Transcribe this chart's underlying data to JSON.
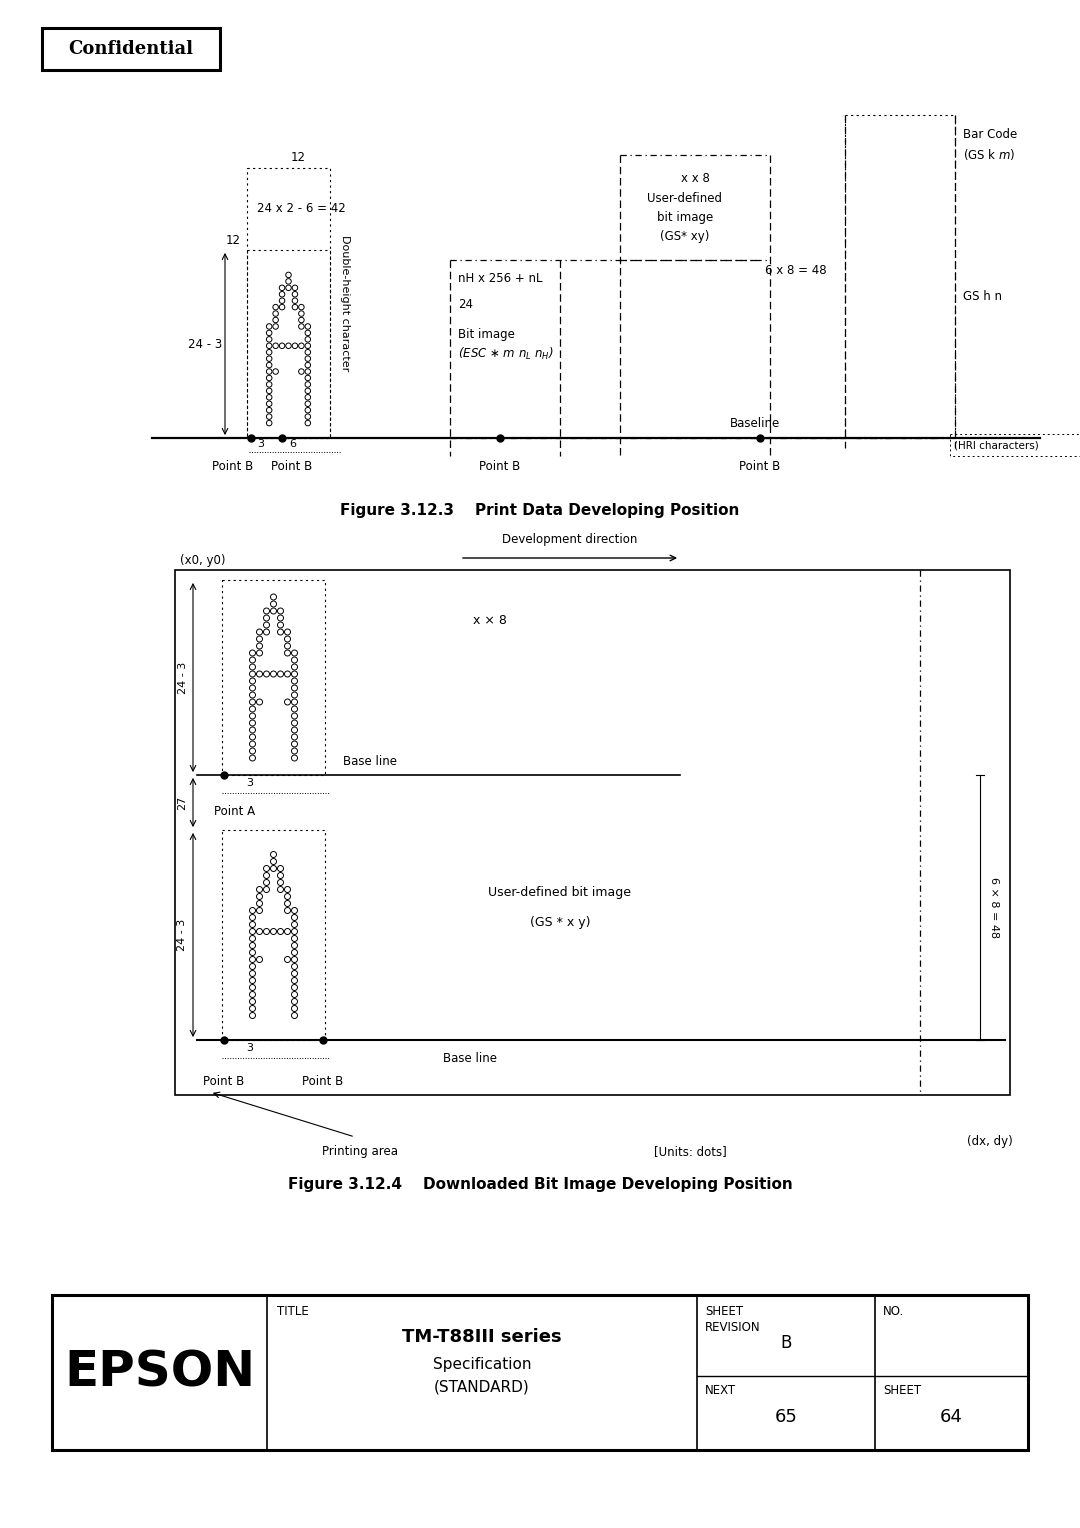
{
  "page_bg": "#ffffff",
  "confidential_text": "Confidential",
  "fig312_caption": "Figure 3.12.3    Print Data Developing Position",
  "fig314_caption": "Figure 3.12.4    Downloaded Bit Image Developing Position",
  "epson_text": "EPSON",
  "title_label": "TITLE",
  "title_main": "TM-T88III series",
  "title_sub1": "Specification",
  "title_sub2": "(STANDARD)",
  "sheet_revision_value": "B",
  "no_label": "NO.",
  "next_label": "NEXT",
  "next_value": "65",
  "sheet_label": "SHEET",
  "sheet_value": "64",
  "dev_direction_label": "Development direction"
}
